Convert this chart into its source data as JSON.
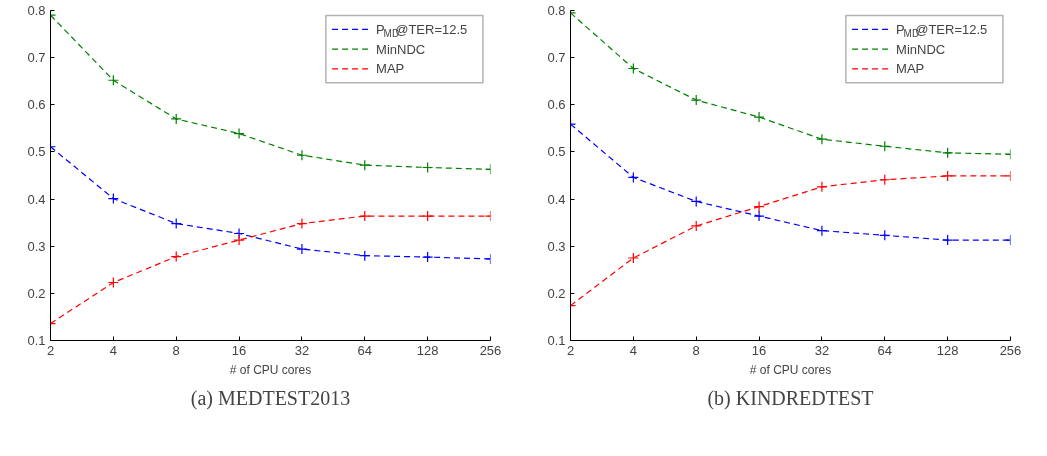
{
  "chart_data": [
    {
      "type": "line",
      "title": "(a) MEDTEST2013",
      "xlabel": "# of CPU cores",
      "x": [
        2,
        4,
        8,
        16,
        32,
        64,
        128,
        256
      ],
      "log": "x",
      "xlim": [
        2,
        256
      ],
      "xticks": [
        2,
        4,
        8,
        16,
        32,
        64,
        128,
        256
      ],
      "ylim": [
        0.1,
        0.8
      ],
      "yticks": [
        0.1,
        0.2,
        0.3,
        0.4,
        0.5,
        0.6,
        0.7,
        0.8
      ],
      "grid": false,
      "legend": "top right",
      "marker": "cross",
      "line_style": "dashed",
      "series": [
        {
          "name": "P$_{MD}$@TER=12.5",
          "color": "#0000ff",
          "values": [
            0.511,
            0.401,
            0.348,
            0.327,
            0.294,
            0.28,
            0.277,
            0.273
          ]
        },
        {
          "name": "MinNDC",
          "color": "#008000",
          "values": [
            0.79,
            0.652,
            0.57,
            0.539,
            0.493,
            0.472,
            0.467,
            0.463
          ]
        },
        {
          "name": "MAP",
          "color": "#ff0000",
          "values": [
            0.136,
            0.223,
            0.278,
            0.313,
            0.348,
            0.364,
            0.364,
            0.364
          ]
        }
      ]
    },
    {
      "type": "line",
      "title": "(b) KINDREDTEST",
      "xlabel": "# of CPU cores",
      "x": [
        2,
        4,
        8,
        16,
        32,
        64,
        128,
        256
      ],
      "log": "x",
      "xlim": [
        2,
        256
      ],
      "xticks": [
        2,
        4,
        8,
        16,
        32,
        64,
        128,
        256
      ],
      "ylim": [
        0.1,
        0.8
      ],
      "yticks": [
        0.1,
        0.2,
        0.3,
        0.4,
        0.5,
        0.6,
        0.7,
        0.8
      ],
      "grid": false,
      "legend": "top right",
      "marker": "cross",
      "line_style": "dashed",
      "series": [
        {
          "name": "P$_{MD}$@TER=12.5",
          "color": "#0000ff",
          "values": [
            0.559,
            0.446,
            0.395,
            0.364,
            0.333,
            0.323,
            0.313,
            0.313
          ]
        },
        {
          "name": "MinNDC",
          "color": "#008000",
          "values": [
            0.795,
            0.677,
            0.61,
            0.574,
            0.527,
            0.512,
            0.498,
            0.495
          ]
        },
        {
          "name": "MAP",
          "color": "#ff0000",
          "values": [
            0.174,
            0.275,
            0.343,
            0.384,
            0.426,
            0.441,
            0.449,
            0.449
          ]
        }
      ]
    }
  ]
}
